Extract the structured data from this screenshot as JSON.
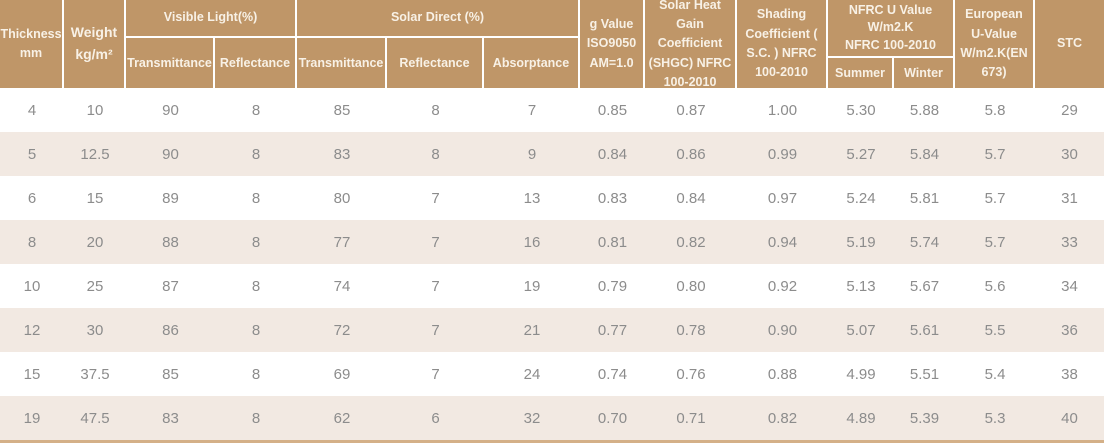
{
  "colors": {
    "header_bg": "#bf9668",
    "header_text": "#f8f1e6",
    "row_bg": "#ffffff",
    "row_alt_bg": "#f2e9e2",
    "data_text": "#8c8c8c",
    "divider": "#ffffff",
    "bottom_bar": "#d4b088"
  },
  "header": {
    "thickness_line1": "Thickness",
    "thickness_line2": "mm",
    "weight_line1": "Weight",
    "weight_line2": "kg/m²",
    "visible_light_title": "Visible Light(%)",
    "vl_transmittance": "Transmittance",
    "vl_reflectance": "Reflectance",
    "solar_direct_title": "Solar Direct (%)",
    "sd_transmittance": "Transmittance",
    "sd_reflectance": "Reflectance",
    "sd_absorptance": "Absorptance",
    "g_value_line1": "g Value",
    "g_value_line2": "ISO9050",
    "g_value_line3": "AM=1.0",
    "shgc": "Solar Heat Gain Coefficient (SHGC) NFRC 100-2010",
    "shading": "Shading Coefficient ( S.C. ) NFRC 100-2010",
    "nfrc_title_line1": "NFRC U Value",
    "nfrc_title_line2": "W/m2.K",
    "nfrc_title_line3": "NFRC 100-2010",
    "nfrc_summer": "Summer",
    "nfrc_winter": "Winter",
    "european_u": "European U-Value W/m2.K(EN 673)",
    "stc": "STC"
  },
  "chart_data": {
    "type": "table",
    "columns": [
      "Thickness mm",
      "Weight kg/m²",
      "Visible Light Transmittance (%)",
      "Visible Light Reflectance (%)",
      "Solar Direct Transmittance (%)",
      "Solar Direct Reflectance (%)",
      "Solar Direct Absorptance (%)",
      "g Value ISO9050 AM=1.0",
      "Solar Heat Gain Coefficient (SHGC) NFRC 100-2010",
      "Shading Coefficient (S.C.) NFRC 100-2010",
      "NFRC U Value W/m2.K Summer",
      "NFRC U Value W/m2.K Winter",
      "European U-Value W/m2.K (EN 673)",
      "STC"
    ],
    "rows": [
      [
        "4",
        "10",
        "90",
        "8",
        "85",
        "8",
        "7",
        "0.85",
        "0.87",
        "1.00",
        "5.30",
        "5.88",
        "5.8",
        "29"
      ],
      [
        "5",
        "12.5",
        "90",
        "8",
        "83",
        "8",
        "9",
        "0.84",
        "0.86",
        "0.99",
        "5.27",
        "5.84",
        "5.7",
        "30"
      ],
      [
        "6",
        "15",
        "89",
        "8",
        "80",
        "7",
        "13",
        "0.83",
        "0.84",
        "0.97",
        "5.24",
        "5.81",
        "5.7",
        "31"
      ],
      [
        "8",
        "20",
        "88",
        "8",
        "77",
        "7",
        "16",
        "0.81",
        "0.82",
        "0.94",
        "5.19",
        "5.74",
        "5.7",
        "33"
      ],
      [
        "10",
        "25",
        "87",
        "8",
        "74",
        "7",
        "19",
        "0.79",
        "0.80",
        "0.92",
        "5.13",
        "5.67",
        "5.6",
        "34"
      ],
      [
        "12",
        "30",
        "86",
        "8",
        "72",
        "7",
        "21",
        "0.77",
        "0.78",
        "0.90",
        "5.07",
        "5.61",
        "5.5",
        "36"
      ],
      [
        "15",
        "37.5",
        "85",
        "8",
        "69",
        "7",
        "24",
        "0.74",
        "0.76",
        "0.88",
        "4.99",
        "5.51",
        "5.4",
        "38"
      ],
      [
        "19",
        "47.5",
        "83",
        "8",
        "62",
        "6",
        "32",
        "0.70",
        "0.71",
        "0.82",
        "4.89",
        "5.39",
        "5.3",
        "40"
      ]
    ]
  }
}
